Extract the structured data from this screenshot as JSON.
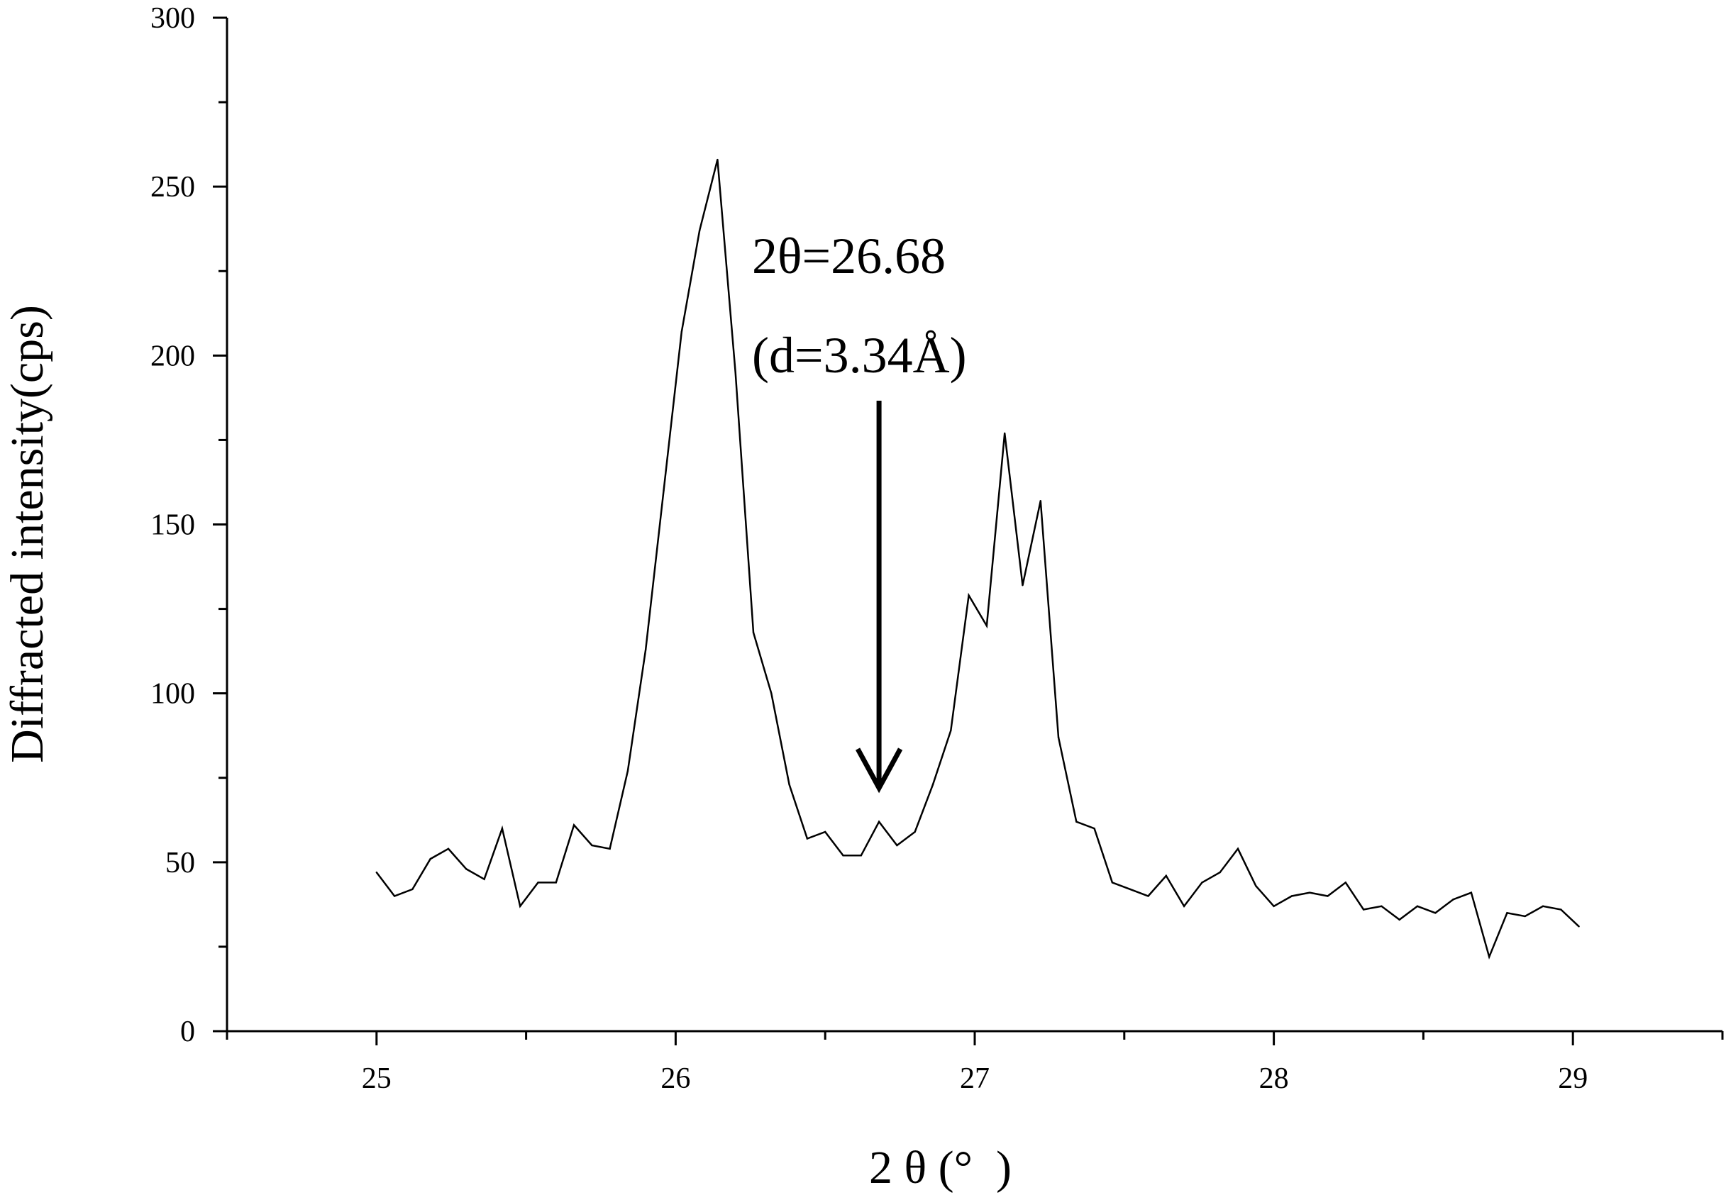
{
  "chart_data": {
    "type": "line",
    "xlabel": "2 θ (°  )",
    "ylabel": "Diffracted intensity(cps)",
    "xlim": [
      24.5,
      29.5
    ],
    "ylim": [
      0,
      300
    ],
    "x_ticks": [
      25,
      26,
      27,
      28,
      29
    ],
    "x_tick_labels": [
      "25",
      "26",
      "27",
      "28",
      "29"
    ],
    "y_ticks": [
      0,
      50,
      100,
      150,
      200,
      250,
      300
    ],
    "y_tick_labels": [
      "0",
      "50",
      "100",
      "150",
      "200",
      "250",
      "300"
    ],
    "grid": false,
    "legend": "none",
    "annotations": [
      {
        "text_line1": "2θ=26.68",
        "text_line2": "(d=3.34Å)",
        "points_to_x": 26.68,
        "points_to_y": 72
      }
    ],
    "series": [
      {
        "color": "#000000",
        "x": [
          25.0,
          25.06,
          25.12,
          25.18,
          25.24,
          25.3,
          25.36,
          25.42,
          25.48,
          25.54,
          25.6,
          25.66,
          25.72,
          25.78,
          25.84,
          25.9,
          25.96,
          26.02,
          26.08,
          26.14,
          26.2,
          26.26,
          26.32,
          26.38,
          26.44,
          26.5,
          26.56,
          26.62,
          26.68,
          26.74,
          26.8,
          26.86,
          26.92,
          26.98,
          27.04,
          27.1,
          27.16,
          27.22,
          27.28,
          27.34,
          27.4,
          27.46,
          27.52,
          27.58,
          27.64,
          27.7,
          27.76,
          27.82,
          27.88,
          27.94,
          28.0,
          28.06,
          28.12,
          28.18,
          28.24,
          28.3,
          28.36,
          28.42,
          28.48,
          28.54,
          28.6,
          28.66,
          28.72,
          28.78,
          28.84,
          28.9,
          28.96,
          29.02
        ],
        "y": [
          47,
          40,
          42,
          51,
          54,
          48,
          45,
          60,
          37,
          44,
          44,
          61,
          55,
          54,
          77,
          113,
          160,
          207,
          237,
          258,
          195,
          118,
          100,
          73,
          57,
          59,
          52,
          52,
          62,
          55,
          59,
          73,
          89,
          129,
          120,
          177,
          132,
          157,
          87,
          62,
          60,
          44,
          42,
          40,
          46,
          37,
          44,
          47,
          54,
          43,
          37,
          40,
          41,
          40,
          44,
          36,
          37,
          33,
          37,
          35,
          39,
          41,
          22,
          35,
          34,
          37,
          36,
          31
        ]
      }
    ]
  }
}
